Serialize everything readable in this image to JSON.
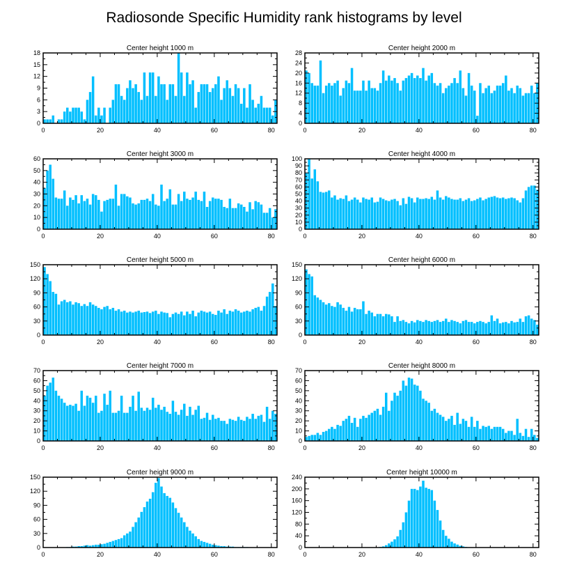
{
  "title": "Radiosonde Specific Humidity rank histograms by level",
  "colors": {
    "bar": "#00bfff",
    "axis": "#000000",
    "background": "#ffffff"
  },
  "chart_data": [
    {
      "type": "bar",
      "title": "Center height 1000 m",
      "xlim": [
        0,
        82
      ],
      "ylim": [
        0,
        18
      ],
      "xticks": [
        0,
        20,
        40,
        60,
        80
      ],
      "yticks": [
        0,
        3,
        6,
        9,
        12,
        15,
        18
      ],
      "values": [
        1,
        1,
        1,
        2,
        0,
        1,
        1,
        3,
        4,
        3,
        4,
        4,
        4,
        3,
        1,
        6,
        8,
        12,
        2,
        4,
        2,
        4,
        0,
        4,
        6,
        10,
        10,
        7,
        6,
        9,
        11,
        9,
        10,
        8,
        6,
        13,
        7,
        13,
        13,
        7,
        12,
        10,
        10,
        6,
        10,
        10,
        7,
        18,
        13,
        7,
        13,
        10,
        11,
        4,
        8,
        10,
        10,
        10,
        8,
        9,
        10,
        12,
        6,
        9,
        11,
        9,
        7,
        10,
        9,
        5,
        9,
        4,
        10,
        6,
        4,
        5,
        7,
        4,
        4,
        4,
        2,
        6
      ]
    },
    {
      "type": "bar",
      "title": "Center height 2000 m",
      "xlim": [
        0,
        82
      ],
      "ylim": [
        0,
        28
      ],
      "xticks": [
        0,
        20,
        40,
        60,
        80
      ],
      "yticks": [
        0,
        4,
        8,
        12,
        16,
        20,
        24,
        28
      ],
      "values": [
        21,
        20,
        16,
        15,
        15,
        25,
        12,
        15,
        16,
        15,
        16,
        17,
        11,
        14,
        17,
        16,
        22,
        13,
        13,
        13,
        17,
        13,
        17,
        14,
        14,
        13,
        16,
        21,
        17,
        19,
        17,
        18,
        16,
        13,
        17,
        18,
        19,
        20,
        18,
        19,
        18,
        22,
        17,
        19,
        20,
        16,
        15,
        16,
        12,
        14,
        15,
        16,
        18,
        16,
        21,
        14,
        11,
        20,
        15,
        13,
        3,
        16,
        12,
        14,
        15,
        12,
        13,
        15,
        15,
        16,
        19,
        13,
        14,
        12,
        15,
        14,
        11,
        12,
        12,
        15,
        12,
        16
      ]
    },
    {
      "type": "bar",
      "title": "Center height 3000 m",
      "xlim": [
        0,
        82
      ],
      "ylim": [
        0,
        60
      ],
      "xticks": [
        0,
        20,
        40,
        60,
        80
      ],
      "yticks": [
        0,
        10,
        20,
        30,
        40,
        50,
        60
      ],
      "values": [
        35,
        50,
        55,
        43,
        27,
        26,
        26,
        33,
        20,
        27,
        25,
        29,
        22,
        29,
        24,
        26,
        21,
        30,
        29,
        25,
        15,
        24,
        25,
        26,
        26,
        38,
        20,
        30,
        30,
        28,
        27,
        22,
        21,
        22,
        25,
        25,
        26,
        24,
        30,
        21,
        20,
        38,
        24,
        26,
        34,
        21,
        21,
        30,
        24,
        32,
        26,
        25,
        27,
        32,
        25,
        24,
        32,
        19,
        24,
        27,
        26,
        26,
        25,
        19,
        18,
        26,
        18,
        18,
        22,
        21,
        19,
        15,
        23,
        17,
        24,
        23,
        21,
        14,
        14,
        18,
        10,
        17
      ]
    },
    {
      "type": "bar",
      "title": "Center height 4000 m",
      "xlim": [
        0,
        82
      ],
      "ylim": [
        0,
        100
      ],
      "xticks": [
        0,
        20,
        40,
        60,
        80
      ],
      "yticks": [
        0,
        10,
        20,
        30,
        40,
        50,
        60,
        70,
        80,
        90,
        100
      ],
      "values": [
        80,
        100,
        72,
        85,
        68,
        53,
        52,
        53,
        55,
        45,
        48,
        42,
        44,
        43,
        48,
        40,
        42,
        45,
        42,
        38,
        45,
        43,
        42,
        45,
        38,
        39,
        45,
        43,
        41,
        40,
        42,
        43,
        40,
        34,
        44,
        36,
        46,
        44,
        38,
        45,
        43,
        43,
        44,
        43,
        46,
        42,
        55,
        45,
        42,
        47,
        45,
        43,
        42,
        42,
        44,
        40,
        42,
        44,
        40,
        41,
        43,
        45,
        41,
        43,
        45,
        46,
        47,
        45,
        44,
        45,
        43,
        44,
        45,
        44,
        41,
        38,
        44,
        55,
        60,
        62,
        62,
        56
      ]
    },
    {
      "type": "bar",
      "title": "Center height 5000 m",
      "xlim": [
        0,
        82
      ],
      "ylim": [
        0,
        150
      ],
      "xticks": [
        0,
        20,
        40,
        60,
        80
      ],
      "yticks": [
        0,
        30,
        60,
        90,
        120,
        150
      ],
      "values": [
        145,
        130,
        115,
        92,
        88,
        65,
        72,
        75,
        70,
        72,
        65,
        70,
        68,
        62,
        66,
        62,
        70,
        65,
        62,
        58,
        55,
        60,
        62,
        55,
        58,
        52,
        55,
        50,
        52,
        48,
        50,
        48,
        50,
        52,
        48,
        49,
        50,
        47,
        50,
        52,
        45,
        50,
        48,
        47,
        38,
        45,
        48,
        45,
        50,
        42,
        50,
        45,
        52,
        40,
        48,
        52,
        50,
        48,
        50,
        45,
        43,
        52,
        48,
        55,
        45,
        52,
        50,
        55,
        52,
        48,
        50,
        52,
        50,
        55,
        58,
        60,
        52,
        62,
        82,
        92,
        110,
        62
      ]
    },
    {
      "type": "bar",
      "title": "Center height 6000 m",
      "xlim": [
        0,
        82
      ],
      "ylim": [
        0,
        150
      ],
      "xticks": [
        0,
        20,
        40,
        60,
        80
      ],
      "yticks": [
        0,
        30,
        60,
        90,
        120,
        150
      ],
      "values": [
        140,
        130,
        125,
        85,
        80,
        75,
        70,
        65,
        68,
        62,
        60,
        70,
        65,
        58,
        52,
        60,
        50,
        58,
        55,
        55,
        72,
        45,
        52,
        48,
        40,
        45,
        45,
        40,
        45,
        44,
        40,
        28,
        40,
        30,
        32,
        28,
        25,
        30,
        27,
        32,
        30,
        28,
        32,
        30,
        28,
        30,
        32,
        28,
        30,
        35,
        28,
        32,
        30,
        28,
        25,
        30,
        32,
        28,
        28,
        25,
        28,
        30,
        28,
        25,
        28,
        42,
        30,
        35,
        25,
        27,
        28,
        25,
        30,
        27,
        28,
        35,
        28,
        40,
        42,
        35,
        32,
        22
      ]
    },
    {
      "type": "bar",
      "title": "Center height 7000 m",
      "xlim": [
        0,
        82
      ],
      "ylim": [
        0,
        70
      ],
      "xticks": [
        0,
        20,
        40,
        60,
        80
      ],
      "yticks": [
        0,
        10,
        20,
        30,
        40,
        50,
        60,
        70
      ],
      "values": [
        45,
        55,
        58,
        63,
        50,
        45,
        42,
        38,
        35,
        36,
        35,
        37,
        30,
        50,
        35,
        45,
        43,
        38,
        45,
        28,
        30,
        47,
        36,
        50,
        28,
        28,
        30,
        45,
        28,
        28,
        34,
        45,
        30,
        49,
        33,
        30,
        33,
        31,
        43,
        33,
        36,
        31,
        34,
        29,
        27,
        40,
        29,
        26,
        31,
        37,
        25,
        34,
        26,
        31,
        35,
        22,
        23,
        28,
        21,
        26,
        22,
        23,
        20,
        20,
        17,
        22,
        21,
        20,
        24,
        21,
        20,
        24,
        22,
        27,
        22,
        25,
        26,
        19,
        34,
        22,
        30,
        27
      ]
    },
    {
      "type": "bar",
      "title": "Center height 8000 m",
      "xlim": [
        0,
        82
      ],
      "ylim": [
        0,
        70
      ],
      "xticks": [
        0,
        20,
        40,
        60,
        80
      ],
      "yticks": [
        0,
        10,
        20,
        30,
        40,
        50,
        60,
        70
      ],
      "values": [
        4,
        5,
        6,
        6,
        8,
        6,
        9,
        10,
        12,
        14,
        12,
        16,
        15,
        20,
        22,
        25,
        18,
        23,
        14,
        22,
        25,
        23,
        26,
        28,
        30,
        32,
        26,
        34,
        48,
        30,
        40,
        48,
        45,
        50,
        60,
        55,
        63,
        62,
        56,
        55,
        50,
        42,
        40,
        38,
        30,
        32,
        28,
        26,
        24,
        20,
        22,
        25,
        16,
        28,
        17,
        22,
        20,
        14,
        24,
        14,
        20,
        12,
        15,
        14,
        15,
        12,
        14,
        14,
        14,
        12,
        8,
        10,
        10,
        6,
        22,
        8,
        5,
        12,
        4,
        12,
        6,
        3
      ]
    },
    {
      "type": "bar",
      "title": "Center height 9000 m",
      "xlim": [
        0,
        82
      ],
      "ylim": [
        0,
        150
      ],
      "xticks": [
        0,
        20,
        40,
        60,
        80
      ],
      "yticks": [
        0,
        30,
        60,
        90,
        120,
        150
      ],
      "values": [
        0,
        0,
        0,
        0,
        0,
        0,
        0,
        0,
        1,
        1,
        2,
        2,
        3,
        3,
        4,
        5,
        4,
        5,
        6,
        6,
        7,
        8,
        10,
        12,
        14,
        16,
        18,
        20,
        26,
        30,
        34,
        44,
        54,
        64,
        76,
        86,
        98,
        104,
        118,
        138,
        148,
        130,
        116,
        110,
        106,
        96,
        84,
        74,
        64,
        54,
        44,
        36,
        30,
        24,
        18,
        14,
        12,
        10,
        8,
        6,
        5,
        4,
        3,
        3,
        2,
        2,
        2,
        1,
        1,
        1,
        1,
        1,
        0,
        0,
        0,
        0,
        0,
        0,
        0,
        0,
        0,
        0
      ]
    },
    {
      "type": "bar",
      "title": "Center height 10000 m",
      "xlim": [
        0,
        82
      ],
      "ylim": [
        0,
        240
      ],
      "xticks": [
        0,
        20,
        40,
        60,
        80
      ],
      "yticks": [
        0,
        40,
        80,
        120,
        160,
        200,
        240
      ],
      "values": [
        0,
        0,
        0,
        0,
        0,
        0,
        0,
        0,
        0,
        0,
        0,
        0,
        0,
        0,
        0,
        0,
        0,
        0,
        0,
        0,
        0,
        0,
        0,
        0,
        0,
        1,
        2,
        4,
        8,
        14,
        20,
        28,
        38,
        60,
        86,
        120,
        160,
        200,
        200,
        196,
        208,
        228,
        204,
        200,
        196,
        160,
        128,
        92,
        60,
        40,
        30,
        20,
        14,
        10,
        6,
        4,
        2,
        1,
        1,
        0,
        0,
        0,
        0,
        0,
        0,
        0,
        0,
        0,
        0,
        0,
        0,
        0,
        0,
        0,
        0,
        0,
        0,
        0,
        0,
        0,
        0,
        0
      ]
    }
  ]
}
